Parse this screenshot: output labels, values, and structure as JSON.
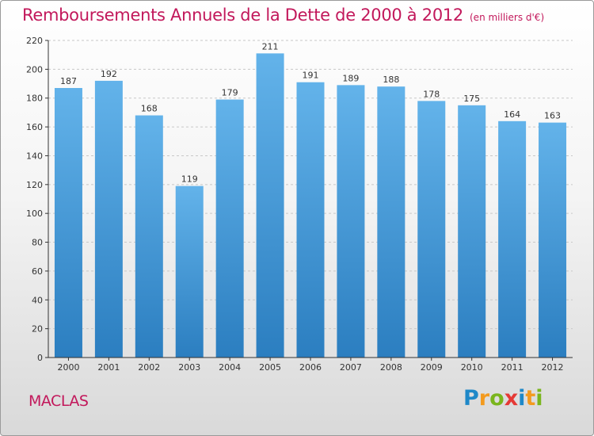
{
  "title": "Remboursements Annuels de la Dette de 2000 à 2012",
  "unit_note": "(en milliers d'€)",
  "commune": "MACLAS",
  "brand": {
    "name": "Proxiti",
    "letters": [
      {
        "ch": "P",
        "color": "#1e88c8"
      },
      {
        "ch": "r",
        "color": "#f39a1e"
      },
      {
        "ch": "o",
        "color": "#7ab51d"
      },
      {
        "ch": "x",
        "color": "#e53935"
      },
      {
        "ch": "i",
        "color": "#1e88c8"
      },
      {
        "ch": "t",
        "color": "#f39a1e"
      },
      {
        "ch": "i",
        "color": "#7ab51d"
      }
    ]
  },
  "colors": {
    "title": "#c2185b",
    "bar_top": "#63b3ea",
    "bar_bottom": "#2b7ec0",
    "grid": "#c8c8c8",
    "axis": "#333333"
  },
  "chart_data": {
    "type": "bar",
    "categories": [
      "2000",
      "2001",
      "2002",
      "2003",
      "2004",
      "2005",
      "2006",
      "2007",
      "2008",
      "2009",
      "2010",
      "2011",
      "2012"
    ],
    "values": [
      187,
      192,
      168,
      119,
      179,
      211,
      191,
      189,
      188,
      178,
      175,
      164,
      163
    ],
    "ylim": [
      0,
      220
    ],
    "yticks": [
      0,
      20,
      40,
      60,
      80,
      100,
      120,
      140,
      160,
      180,
      200,
      220
    ],
    "grid": true,
    "legend": "none"
  }
}
